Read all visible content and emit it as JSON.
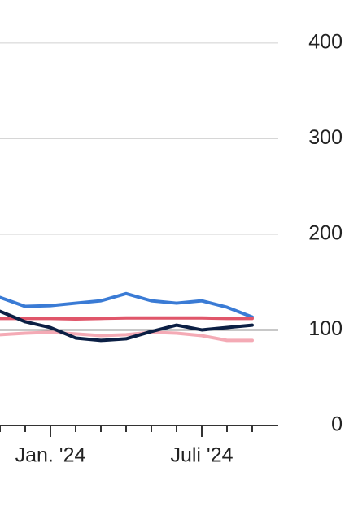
{
  "chart_data": {
    "type": "line",
    "categories": [
      null,
      null,
      "Jan. '24",
      null,
      null,
      null,
      null,
      null,
      "Juli '24",
      null,
      null
    ],
    "series": [
      {
        "color": "#3a7bd5",
        "values": [
          134,
          124.6,
          125.4,
          128,
          130.5,
          138,
          130.5,
          128,
          130.5,
          123.7,
          113.5
        ]
      },
      {
        "color": "#e0566a",
        "values": [
          112,
          112,
          112,
          111.5,
          112,
          112.5,
          112.5,
          112.5,
          112.5,
          112,
          112
        ]
      },
      {
        "color": "#f4aab5",
        "values": [
          95,
          96.6,
          97.5,
          95.8,
          94,
          95,
          97.5,
          96.6,
          94,
          89,
          89
        ]
      },
      {
        "color": "#0b1f44",
        "values": [
          119.5,
          108.5,
          102.5,
          91.5,
          89,
          90.7,
          98.3,
          105,
          100,
          102.5,
          105
        ]
      }
    ],
    "reference_line": 100,
    "ylim": [
      0,
      445
    ],
    "yticks": [
      0,
      100,
      200,
      300,
      400
    ],
    "grid": true
  }
}
